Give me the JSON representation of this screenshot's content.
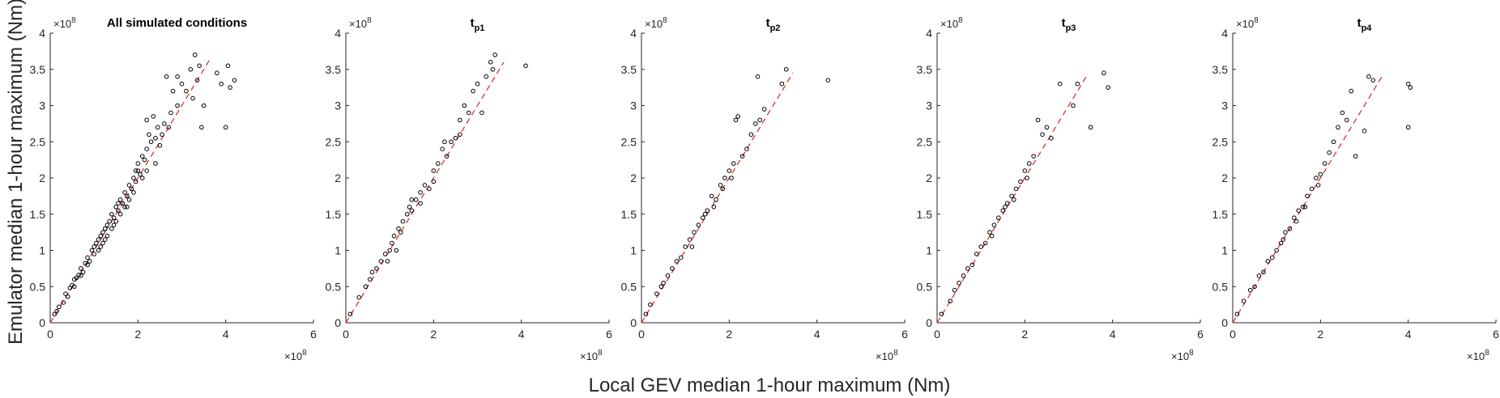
{
  "figure": {
    "ylabel": "Emulator median 1-hour maximum (Nm)",
    "xlabel": "Local GEV median 1-hour maximum (Nm)",
    "x_exponent": "×10",
    "x_exponent_power": "8",
    "y_exponent": "×10",
    "y_exponent_power": "8",
    "x_ticks": [
      "0",
      "2",
      "4",
      "6"
    ],
    "y_ticks": [
      "0",
      "0.5",
      "1",
      "1.5",
      "2",
      "2.5",
      "3",
      "3.5",
      "4"
    ],
    "marker_color": "#000000",
    "line_color": "#e0201b"
  },
  "chart_data": [
    {
      "type": "scatter",
      "title": "All simulated conditions",
      "title_main": "All simulated conditions",
      "title_sub": "",
      "xlim": [
        0,
        6
      ],
      "ylim": [
        0,
        4
      ],
      "x_scale": "×10^8",
      "y_scale": "×10^8",
      "reference_line": {
        "style": "dashed",
        "color": "red",
        "x": [
          0,
          3.65
        ],
        "y": [
          0,
          3.65
        ]
      },
      "points": [
        [
          0.1,
          0.12
        ],
        [
          0.15,
          0.16
        ],
        [
          0.2,
          0.22
        ],
        [
          0.3,
          0.28
        ],
        [
          0.35,
          0.4
        ],
        [
          0.4,
          0.36
        ],
        [
          0.45,
          0.48
        ],
        [
          0.5,
          0.52
        ],
        [
          0.55,
          0.5
        ],
        [
          0.6,
          0.62
        ],
        [
          0.65,
          0.66
        ],
        [
          0.7,
          0.75
        ],
        [
          0.75,
          0.7
        ],
        [
          0.8,
          0.82
        ],
        [
          0.85,
          0.9
        ],
        [
          0.9,
          0.85
        ],
        [
          0.95,
          1.0
        ],
        [
          1.0,
          1.05
        ],
        [
          1.0,
          0.95
        ],
        [
          1.05,
          1.1
        ],
        [
          1.1,
          1.0
        ],
        [
          1.1,
          1.15
        ],
        [
          1.15,
          1.2
        ],
        [
          1.2,
          1.1
        ],
        [
          1.2,
          1.25
        ],
        [
          1.25,
          1.3
        ],
        [
          1.3,
          1.2
        ],
        [
          1.3,
          1.35
        ],
        [
          1.35,
          1.4
        ],
        [
          1.4,
          1.3
        ],
        [
          1.4,
          1.5
        ],
        [
          1.45,
          1.45
        ],
        [
          1.5,
          1.6
        ],
        [
          1.5,
          1.4
        ],
        [
          1.55,
          1.55
        ],
        [
          1.6,
          1.7
        ],
        [
          1.6,
          1.5
        ],
        [
          1.65,
          1.65
        ],
        [
          1.7,
          1.8
        ],
        [
          1.7,
          1.6
        ],
        [
          1.75,
          1.75
        ],
        [
          1.8,
          1.9
        ],
        [
          1.8,
          1.7
        ],
        [
          1.85,
          1.85
        ],
        [
          1.9,
          2.0
        ],
        [
          1.9,
          1.8
        ],
        [
          1.95,
          1.95
        ],
        [
          2.0,
          2.1
        ],
        [
          2.0,
          2.2
        ],
        [
          2.05,
          2.05
        ],
        [
          2.1,
          2.3
        ],
        [
          2.15,
          2.25
        ],
        [
          2.2,
          2.4
        ],
        [
          2.2,
          2.8
        ],
        [
          2.25,
          2.6
        ],
        [
          2.3,
          2.5
        ],
        [
          2.35,
          2.85
        ],
        [
          2.4,
          2.2
        ],
        [
          2.45,
          2.7
        ],
        [
          2.5,
          2.45
        ],
        [
          2.6,
          2.75
        ],
        [
          2.65,
          3.4
        ],
        [
          2.7,
          2.7
        ],
        [
          2.8,
          3.2
        ],
        [
          2.9,
          3.0
        ],
        [
          3.0,
          3.3
        ],
        [
          3.1,
          3.2
        ],
        [
          3.2,
          3.5
        ],
        [
          3.25,
          3.1
        ],
        [
          3.3,
          3.7
        ],
        [
          3.35,
          3.35
        ],
        [
          3.4,
          3.55
        ],
        [
          3.45,
          2.7
        ],
        [
          3.5,
          3.0
        ],
        [
          3.8,
          3.45
        ],
        [
          3.9,
          3.3
        ],
        [
          4.0,
          2.7
        ],
        [
          4.05,
          3.55
        ],
        [
          4.1,
          3.25
        ],
        [
          4.2,
          3.35
        ],
        [
          0.55,
          0.6
        ],
        [
          0.7,
          0.65
        ],
        [
          0.85,
          0.8
        ],
        [
          1.15,
          1.05
        ],
        [
          1.25,
          1.15
        ],
        [
          1.45,
          1.35
        ],
        [
          1.55,
          1.65
        ],
        [
          1.75,
          1.6
        ],
        [
          1.95,
          2.1
        ],
        [
          2.1,
          2.0
        ],
        [
          2.2,
          2.1
        ],
        [
          2.4,
          2.55
        ],
        [
          2.55,
          2.6
        ],
        [
          2.75,
          2.9
        ],
        [
          2.9,
          3.4
        ]
      ]
    },
    {
      "type": "scatter",
      "title": "tp1",
      "title_main": "t",
      "title_sub": "p1",
      "xlim": [
        0,
        6
      ],
      "ylim": [
        0,
        4
      ],
      "x_scale": "×10^8",
      "y_scale": "×10^8",
      "reference_line": {
        "style": "dashed",
        "color": "red",
        "x": [
          0,
          3.6
        ],
        "y": [
          0,
          3.6
        ]
      },
      "points": [
        [
          0.1,
          0.12
        ],
        [
          0.3,
          0.35
        ],
        [
          0.45,
          0.5
        ],
        [
          0.55,
          0.6
        ],
        [
          0.6,
          0.7
        ],
        [
          0.7,
          0.75
        ],
        [
          0.8,
          0.85
        ],
        [
          0.9,
          0.95
        ],
        [
          0.95,
          0.85
        ],
        [
          1.0,
          1.0
        ],
        [
          1.05,
          1.1
        ],
        [
          1.1,
          1.2
        ],
        [
          1.15,
          1.0
        ],
        [
          1.2,
          1.3
        ],
        [
          1.25,
          1.25
        ],
        [
          1.3,
          1.4
        ],
        [
          1.4,
          1.5
        ],
        [
          1.45,
          1.6
        ],
        [
          1.5,
          1.55
        ],
        [
          1.6,
          1.7
        ],
        [
          1.7,
          1.8
        ],
        [
          1.8,
          1.9
        ],
        [
          1.9,
          1.85
        ],
        [
          2.0,
          2.1
        ],
        [
          2.1,
          2.2
        ],
        [
          2.2,
          2.4
        ],
        [
          2.3,
          2.3
        ],
        [
          2.4,
          2.5
        ],
        [
          2.5,
          2.55
        ],
        [
          2.6,
          2.8
        ],
        [
          2.7,
          3.0
        ],
        [
          2.8,
          2.9
        ],
        [
          2.9,
          3.2
        ],
        [
          3.0,
          3.3
        ],
        [
          3.1,
          2.9
        ],
        [
          3.2,
          3.4
        ],
        [
          3.3,
          3.6
        ],
        [
          3.35,
          3.5
        ],
        [
          3.4,
          3.7
        ],
        [
          4.1,
          3.55
        ],
        [
          1.5,
          1.7
        ],
        [
          1.7,
          1.65
        ],
        [
          2.0,
          1.95
        ],
        [
          2.25,
          2.5
        ],
        [
          2.6,
          2.6
        ]
      ]
    },
    {
      "type": "scatter",
      "title": "tp2",
      "title_main": "t",
      "title_sub": "p2",
      "xlim": [
        0,
        6
      ],
      "ylim": [
        0,
        4
      ],
      "x_scale": "×10^8",
      "y_scale": "×10^8",
      "reference_line": {
        "style": "dashed",
        "color": "red",
        "x": [
          0,
          3.45
        ],
        "y": [
          0,
          3.45
        ]
      },
      "points": [
        [
          0.1,
          0.12
        ],
        [
          0.2,
          0.25
        ],
        [
          0.35,
          0.4
        ],
        [
          0.45,
          0.5
        ],
        [
          0.5,
          0.55
        ],
        [
          0.6,
          0.65
        ],
        [
          0.7,
          0.75
        ],
        [
          0.8,
          0.85
        ],
        [
          0.9,
          0.9
        ],
        [
          1.0,
          1.05
        ],
        [
          1.1,
          1.15
        ],
        [
          1.2,
          1.25
        ],
        [
          1.3,
          1.35
        ],
        [
          1.4,
          1.45
        ],
        [
          1.5,
          1.55
        ],
        [
          1.6,
          1.75
        ],
        [
          1.7,
          1.7
        ],
        [
          1.8,
          1.9
        ],
        [
          1.9,
          2.0
        ],
        [
          2.0,
          2.1
        ],
        [
          2.1,
          2.2
        ],
        [
          2.15,
          2.8
        ],
        [
          2.2,
          2.85
        ],
        [
          2.3,
          2.3
        ],
        [
          2.4,
          2.4
        ],
        [
          2.5,
          2.6
        ],
        [
          2.6,
          2.75
        ],
        [
          2.65,
          3.4
        ],
        [
          2.7,
          2.8
        ],
        [
          2.8,
          2.95
        ],
        [
          3.2,
          3.3
        ],
        [
          3.3,
          3.5
        ],
        [
          4.25,
          3.35
        ],
        [
          1.15,
          1.05
        ],
        [
          1.45,
          1.5
        ],
        [
          1.65,
          1.6
        ],
        [
          1.85,
          1.85
        ],
        [
          2.05,
          2.0
        ]
      ]
    },
    {
      "type": "scatter",
      "title": "tp3",
      "title_main": "t",
      "title_sub": "p3",
      "xlim": [
        0,
        6
      ],
      "ylim": [
        0,
        4
      ],
      "x_scale": "×10^8",
      "y_scale": "×10^8",
      "reference_line": {
        "style": "dashed",
        "color": "red",
        "x": [
          0,
          3.4
        ],
        "y": [
          0,
          3.4
        ]
      },
      "points": [
        [
          0.1,
          0.12
        ],
        [
          0.3,
          0.3
        ],
        [
          0.4,
          0.45
        ],
        [
          0.5,
          0.55
        ],
        [
          0.6,
          0.65
        ],
        [
          0.7,
          0.75
        ],
        [
          0.8,
          0.8
        ],
        [
          0.9,
          0.95
        ],
        [
          1.0,
          1.05
        ],
        [
          1.1,
          1.1
        ],
        [
          1.2,
          1.25
        ],
        [
          1.3,
          1.35
        ],
        [
          1.4,
          1.45
        ],
        [
          1.5,
          1.55
        ],
        [
          1.6,
          1.65
        ],
        [
          1.7,
          1.75
        ],
        [
          1.8,
          1.85
        ],
        [
          1.9,
          1.95
        ],
        [
          2.0,
          2.1
        ],
        [
          2.1,
          2.2
        ],
        [
          2.2,
          2.3
        ],
        [
          2.3,
          2.8
        ],
        [
          2.4,
          2.6
        ],
        [
          2.5,
          2.7
        ],
        [
          2.6,
          2.55
        ],
        [
          2.8,
          3.3
        ],
        [
          3.1,
          3.0
        ],
        [
          3.2,
          3.3
        ],
        [
          3.5,
          2.7
        ],
        [
          3.8,
          3.45
        ],
        [
          3.9,
          3.25
        ],
        [
          1.25,
          1.2
        ],
        [
          1.55,
          1.6
        ],
        [
          1.75,
          1.7
        ],
        [
          2.05,
          2.0
        ]
      ]
    },
    {
      "type": "scatter",
      "title": "tp4",
      "title_main": "t",
      "title_sub": "p4",
      "xlim": [
        0,
        6
      ],
      "ylim": [
        0,
        4
      ],
      "x_scale": "×10^8",
      "y_scale": "×10^8",
      "reference_line": {
        "style": "dashed",
        "color": "red",
        "x": [
          0,
          3.4
        ],
        "y": [
          0,
          3.4
        ]
      },
      "points": [
        [
          0.1,
          0.12
        ],
        [
          0.25,
          0.3
        ],
        [
          0.4,
          0.45
        ],
        [
          0.5,
          0.5
        ],
        [
          0.6,
          0.65
        ],
        [
          0.7,
          0.7
        ],
        [
          0.8,
          0.85
        ],
        [
          0.9,
          0.9
        ],
        [
          1.0,
          1.0
        ],
        [
          1.1,
          1.1
        ],
        [
          1.2,
          1.25
        ],
        [
          1.3,
          1.3
        ],
        [
          1.4,
          1.45
        ],
        [
          1.5,
          1.55
        ],
        [
          1.6,
          1.6
        ],
        [
          1.7,
          1.75
        ],
        [
          1.8,
          1.85
        ],
        [
          1.9,
          2.0
        ],
        [
          2.0,
          2.05
        ],
        [
          2.1,
          2.2
        ],
        [
          2.2,
          2.35
        ],
        [
          2.3,
          2.5
        ],
        [
          2.4,
          2.7
        ],
        [
          2.5,
          2.9
        ],
        [
          2.6,
          2.8
        ],
        [
          2.7,
          3.2
        ],
        [
          2.8,
          2.3
        ],
        [
          3.0,
          2.65
        ],
        [
          3.1,
          3.4
        ],
        [
          3.2,
          3.35
        ],
        [
          4.0,
          3.3
        ],
        [
          4.05,
          3.25
        ],
        [
          4.0,
          2.7
        ],
        [
          1.15,
          1.15
        ],
        [
          1.45,
          1.4
        ],
        [
          1.65,
          1.6
        ],
        [
          1.95,
          1.9
        ]
      ]
    }
  ]
}
